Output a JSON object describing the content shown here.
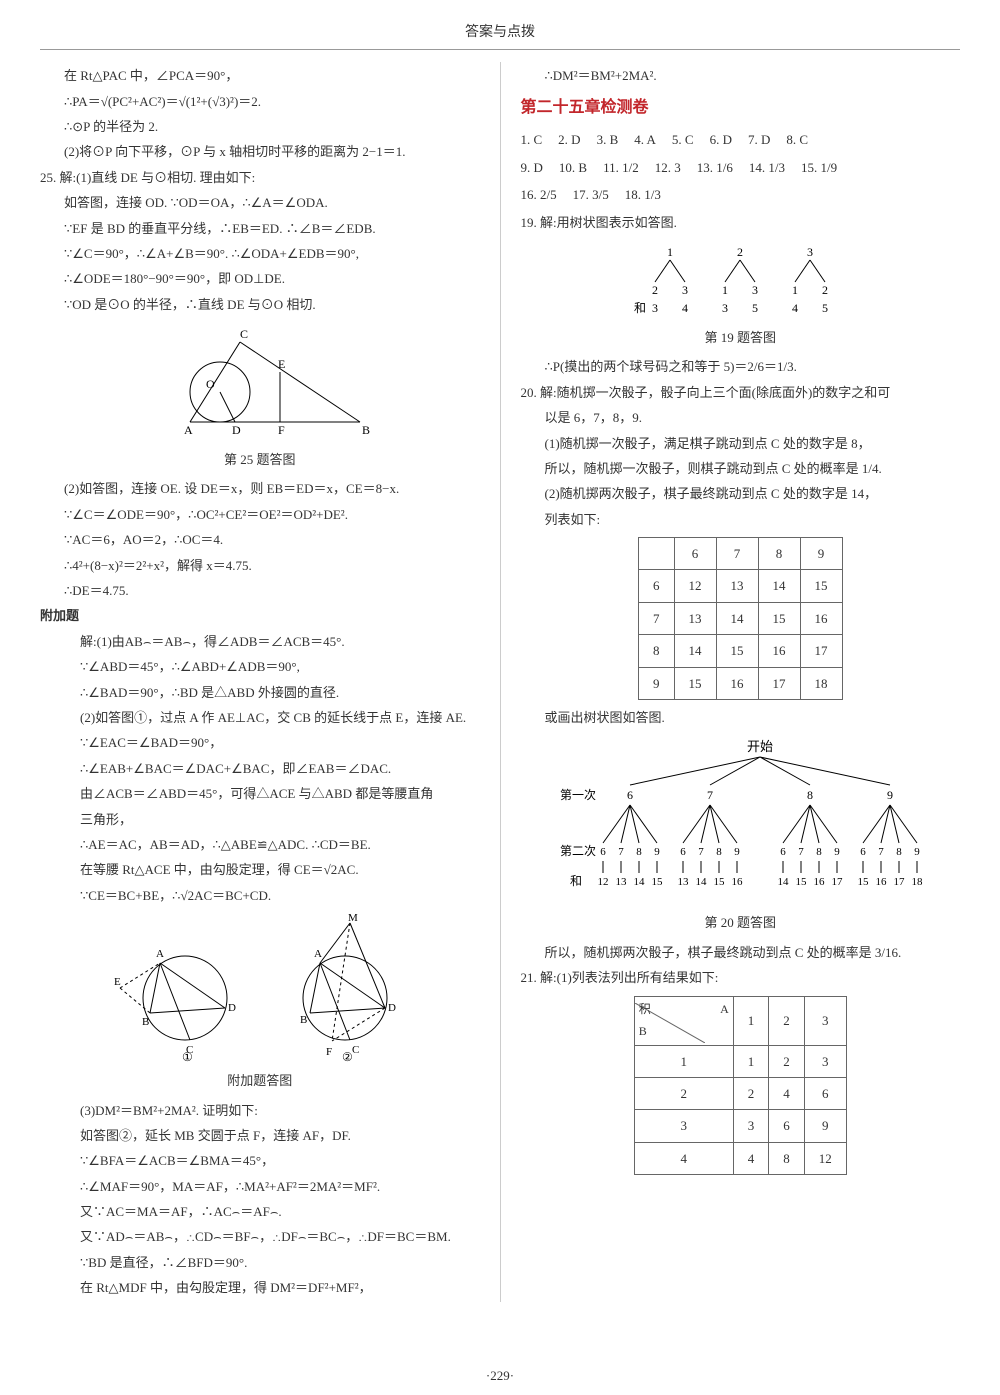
{
  "header": "答案与点拨",
  "page_number": "·229·",
  "left": {
    "l1": "在 Rt△PAC 中，∠PCA＝90°，",
    "l2": "∴PA＝√(PC²+AC²)＝√(1²+(√3)²)＝2.",
    "l3": "∴⊙P 的半径为 2.",
    "l4": "(2)将⊙P 向下平移，⊙P 与 x 轴相切时平移的距离为 2−1＝1.",
    "q25": "25. 解:(1)直线 DE 与⊙相切. 理由如下:",
    "q25_1": "如答图，连接 OD. ∵OD＝OA，∴∠A＝∠ODA.",
    "q25_2": "∵EF 是 BD 的垂直平分线，∴EB＝ED. ∴∠B＝∠EDB.",
    "q25_3": "∵∠C＝90°，∴∠A+∠B＝90°. ∴∠ODA+∠EDB＝90°,",
    "q25_4": "∴∠ODE＝180°−90°＝90°，即 OD⊥DE.",
    "q25_5": "∵OD 是⊙O 的半径，∴直线 DE 与⊙O 相切.",
    "fig25_caption": "第 25 题答图",
    "q25_6": "(2)如答图，连接 OE. 设 DE＝x，则 EB＝ED＝x，CE＝8−x.",
    "q25_7": "∵∠C＝∠ODE＝90°，∴OC²+CE²＝OE²＝OD²+DE².",
    "q25_8": "∵AC＝6，AO＝2，∴OC＝4.",
    "q25_9": "∴4²+(8−x)²＝2²+x²，解得 x＝4.75.",
    "q25_10": "∴DE＝4.75.",
    "extra_title": "附加题",
    "ex1": "解:(1)由AB⌢＝AB⌢，得∠ADB＝∠ACB＝45°.",
    "ex2": "∵∠ABD＝45°，∴∠ABD+∠ADB＝90°,",
    "ex3": "∴∠BAD＝90°，∴BD 是△ABD 外接圆的直径.",
    "ex4": "(2)如答图①，过点 A 作 AE⊥AC，交 CB 的延长线于点 E，连接 AE.",
    "ex5": "∵∠EAC＝∠BAD＝90°，",
    "ex6": "∴∠EAB+∠BAC＝∠DAC+∠BAC，即∠EAB＝∠DAC.",
    "ex7": "由∠ACB＝∠ABD＝45°，可得△ACE 与△ABD 都是等腰直角",
    "ex8": "三角形，",
    "ex9": "∴AE＝AC，AB＝AD，∴△ABE≌△ADC. ∴CD＝BE.",
    "ex10": "在等腰 Rt△ACE 中，由勾股定理，得 CE＝√2AC.",
    "ex11": "∵CE＝BC+BE，∴√2AC＝BC+CD.",
    "fig_extra_caption": "附加题答图",
    "fig_extra_labels": {
      "left": "①",
      "right": "②"
    },
    "ex12": "(3)DM²＝BM²+2MA². 证明如下:",
    "ex13": "如答图②，延长 MB 交圆于点 F，连接 AF，DF.",
    "ex14": "∵∠BFA＝∠ACB＝∠BMA＝45°，",
    "ex15": "∴∠MAF＝90°，MA＝AF，∴MA²+AF²＝2MA²＝MF².",
    "ex16": "又∵AC＝MA＝AF，∴AC⌢＝AF⌢.",
    "ex17": "又∵AD⌢＝AB⌢，∴CD⌢＝BF⌢，∴DF⌢＝BC⌢，∴DF＝BC＝BM.",
    "ex18": "∵BD 是直径，∴∠BFD＝90°.",
    "ex19": "在 Rt△MDF 中，由勾股定理，得 DM²＝DF²+MF²，"
  },
  "right": {
    "r1": "∴DM²＝BM²+2MA².",
    "ch25_title": "第二十五章检测卷",
    "answers_row1": [
      "1. C",
      "2. D",
      "3. B",
      "4. A",
      "5. C",
      "6. D",
      "7. D",
      "8. C"
    ],
    "answers_row2": [
      "9. D",
      "10. B",
      "11. 1/2",
      "12. 3",
      "13. 1/6",
      "14. 1/3",
      "15. 1/9"
    ],
    "answers_row3": [
      "16. 2/5",
      "17. 3/5",
      "18. 1/3"
    ],
    "q19": "19. 解:用树状图表示如答图.",
    "fig19_caption": "第 19 题答图",
    "q19_2": "∴P(摸出的两个球号码之和等于 5)＝2/6＝1/3.",
    "q20": "20. 解:随机掷一次骰子，骰子向上三个面(除底面外)的数字之和可",
    "q20_1": "以是 6，7，8，9.",
    "q20_2": "(1)随机掷一次骰子，满足棋子跳动到点 C 处的数字是 8，",
    "q20_3": "所以，随机掷一次骰子，则棋子跳动到点 C 处的概率是 1/4.",
    "q20_4": "(2)随机掷两次骰子，棋子最终跳动到点 C 处的数字是 14，",
    "q20_5": "列表如下:",
    "table20": {
      "headers": [
        "",
        "6",
        "7",
        "8",
        "9"
      ],
      "rows": [
        [
          "6",
          "12",
          "13",
          "14",
          "15"
        ],
        [
          "7",
          "13",
          "14",
          "15",
          "16"
        ],
        [
          "8",
          "14",
          "15",
          "16",
          "17"
        ],
        [
          "9",
          "15",
          "16",
          "17",
          "18"
        ]
      ]
    },
    "q20_6": "或画出树状图如答图.",
    "tree20": {
      "root": "开始",
      "level1_label": "第一次",
      "level1": [
        "6",
        "7",
        "8",
        "9"
      ],
      "level2_label": "第二次",
      "level2": [
        "6",
        "7",
        "8",
        "9",
        "6",
        "7",
        "8",
        "9",
        "6",
        "7",
        "8",
        "9",
        "6",
        "7",
        "8",
        "9"
      ],
      "sum_label": "和",
      "sums": [
        "12",
        "13",
        "14",
        "15",
        "13",
        "14",
        "15",
        "16",
        "14",
        "15",
        "16",
        "17",
        "15",
        "16",
        "17",
        "18"
      ]
    },
    "fig20_caption": "第 20 题答图",
    "q20_7": "所以，随机掷两次骰子，棋子最终跳动到点 C 处的概率是 3/16.",
    "q21": "21. 解:(1)列表法列出所有结果如下:",
    "table21": {
      "corner_a": "A",
      "corner_b": "B",
      "corner_label": "积",
      "cols": [
        "1",
        "2",
        "3"
      ],
      "rows": [
        [
          "1",
          "1",
          "2",
          "3"
        ],
        [
          "2",
          "2",
          "4",
          "6"
        ],
        [
          "3",
          "3",
          "6",
          "9"
        ],
        [
          "4",
          "4",
          "8",
          "12"
        ]
      ]
    }
  },
  "tree19": {
    "roots": [
      "1",
      "2",
      "3"
    ],
    "children": [
      [
        "2",
        "3"
      ],
      [
        "1",
        "3"
      ],
      [
        "1",
        "2"
      ]
    ],
    "sum_label": "和",
    "sums": [
      [
        "3",
        "4"
      ],
      [
        "3",
        "5"
      ],
      [
        "4",
        "5"
      ]
    ]
  },
  "colors": {
    "text": "#333333",
    "title_red": "#c2262b",
    "border": "#666666",
    "line": "#000000"
  }
}
